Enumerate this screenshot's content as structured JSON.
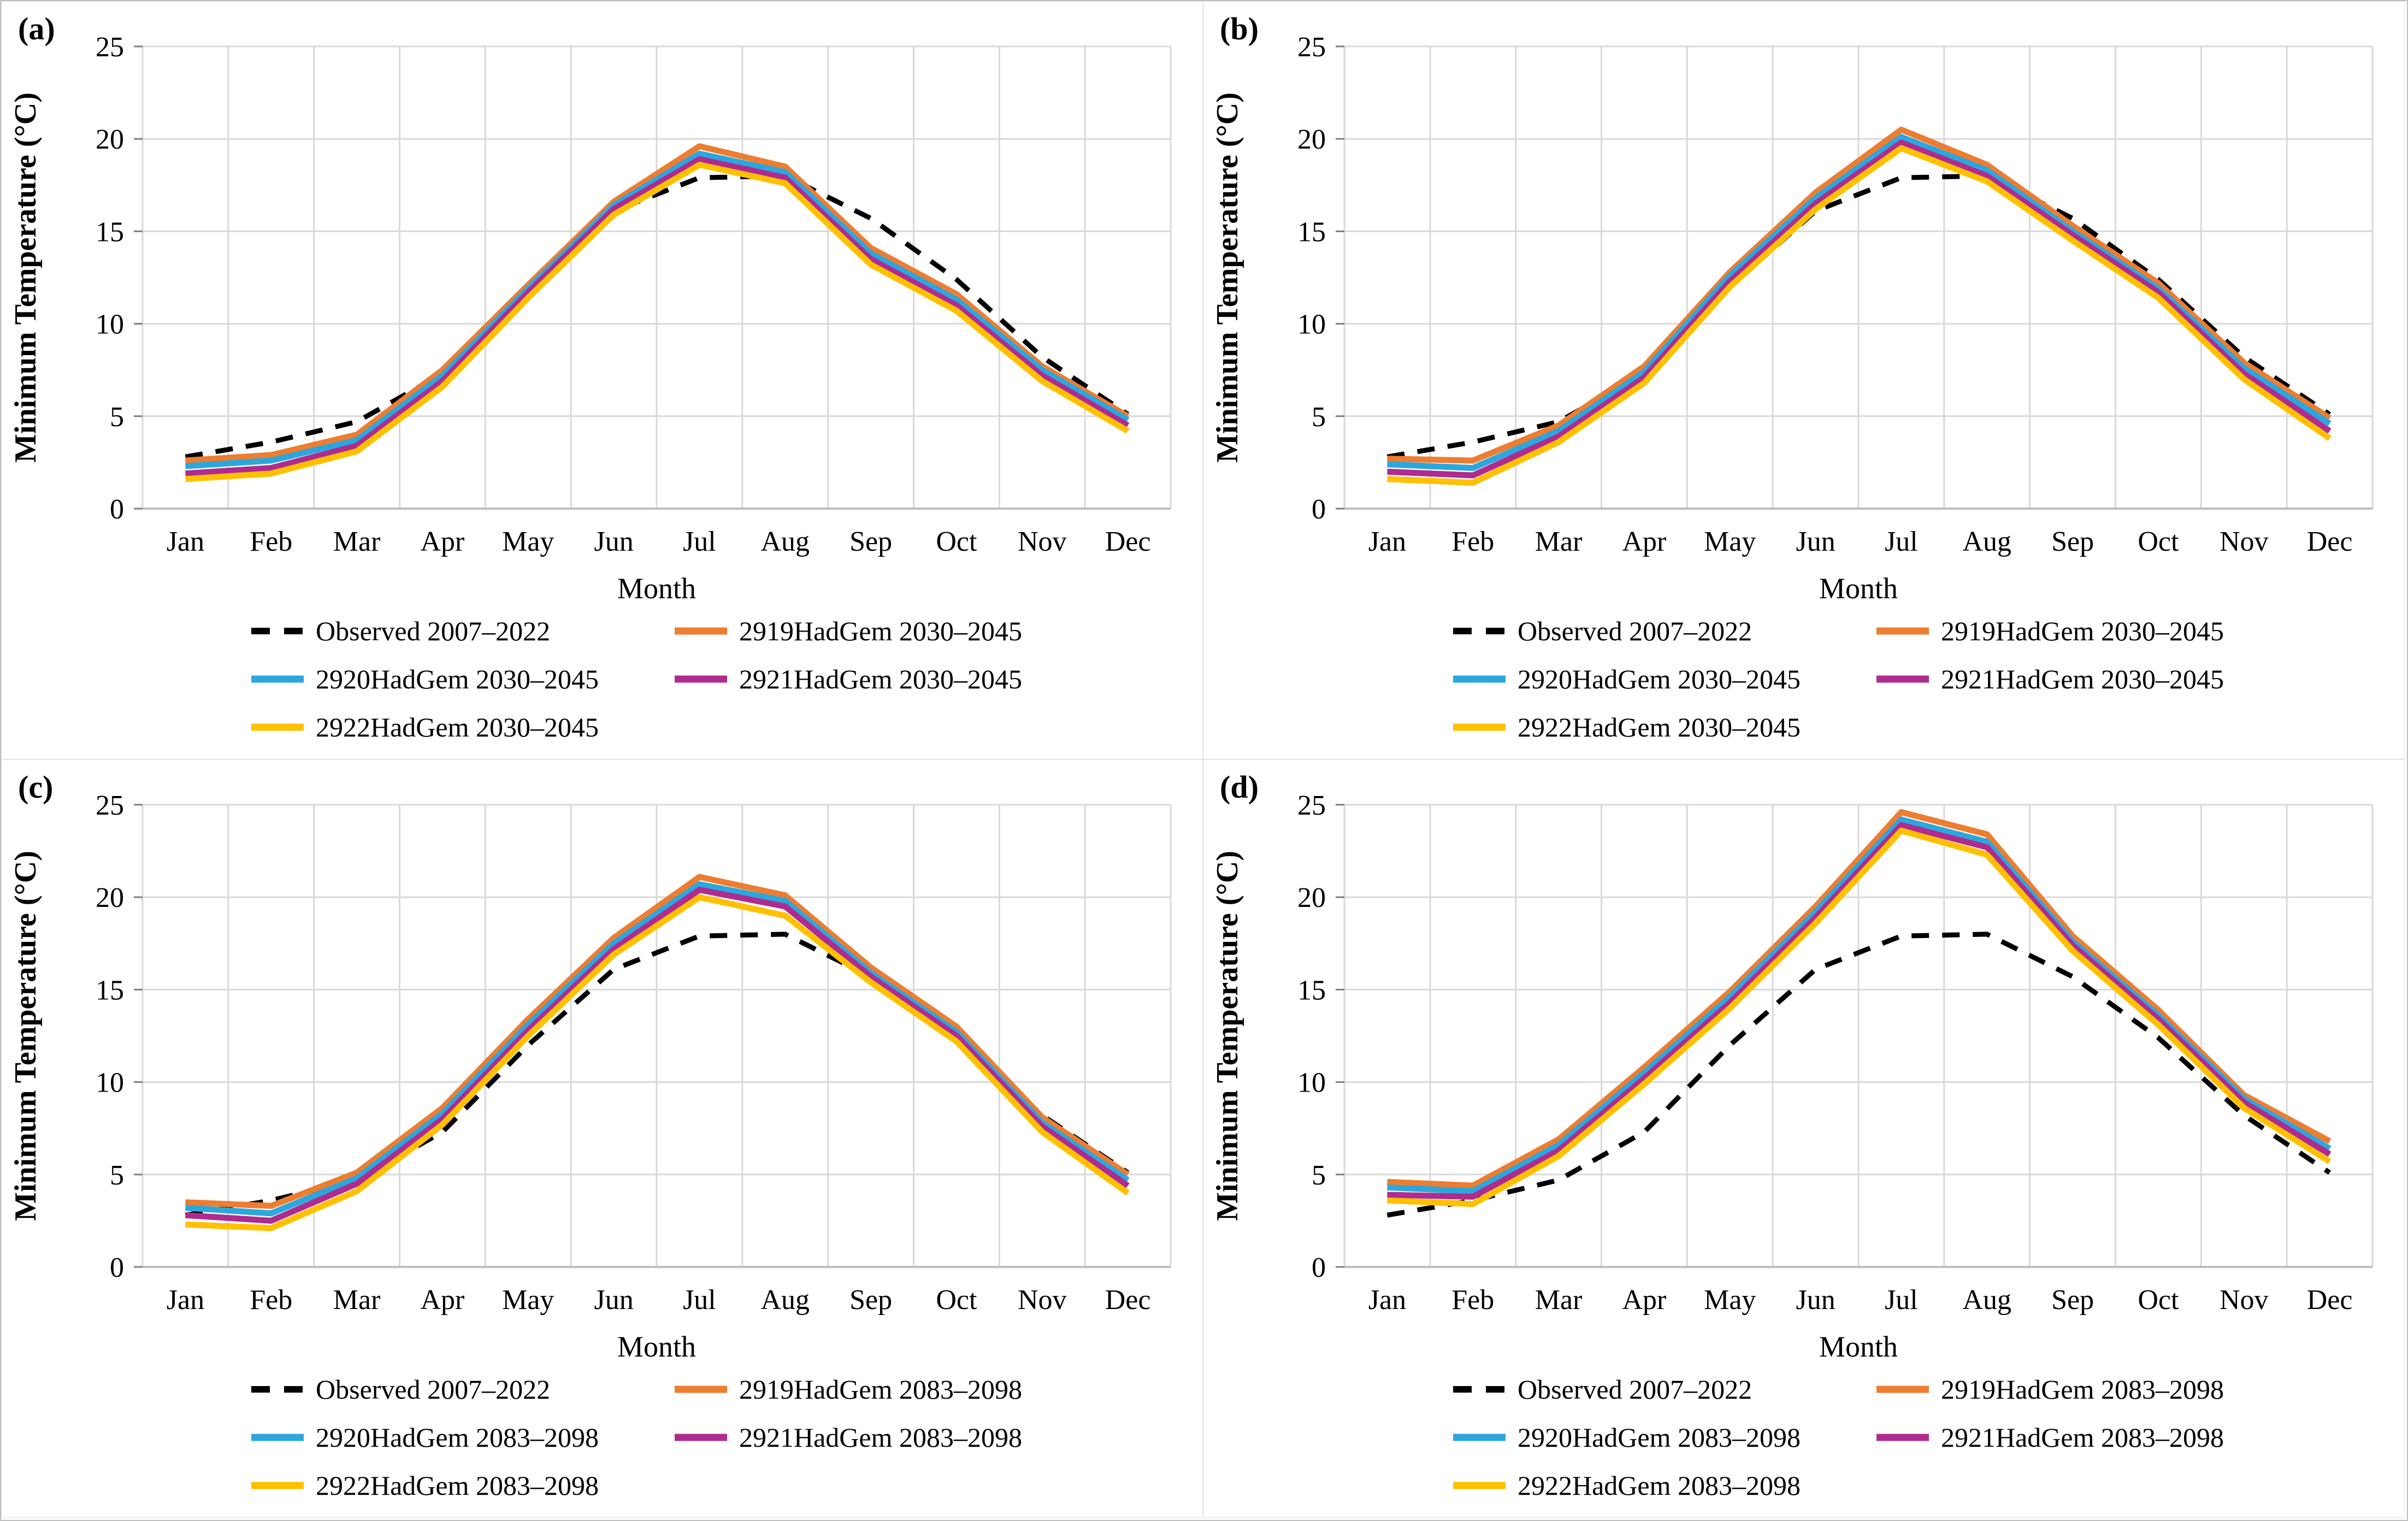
{
  "figure": {
    "background": "#ffffff",
    "border_color": "#bfbfbf",
    "grid_color": "#d9d9d9",
    "axis_line_color": "#bfbfbf",
    "tick_color": "#7f7f7f",
    "text_color": "#000000"
  },
  "colors": {
    "observed": "#000000",
    "s2919": "#ED7D31",
    "s2920": "#2BA7DE",
    "s2921": "#AF2B8F",
    "s2922": "#FFC000"
  },
  "months": [
    "Jan",
    "Feb",
    "Mar",
    "Apr",
    "May",
    "Jun",
    "Jul",
    "Aug",
    "Sep",
    "Oct",
    "Nov",
    "Dec"
  ],
  "chart_data": [
    {
      "id": "a",
      "panel_label": "(a)",
      "type": "line",
      "title": "",
      "xlabel": "Month",
      "ylabel": "Minimum Temperature (°C)",
      "ylim": [
        0,
        25
      ],
      "y_ticks": [
        0,
        5,
        10,
        15,
        20,
        25
      ],
      "grid": true,
      "legend_position": "bottom",
      "series": [
        {
          "name": "Observed 2007–2022",
          "color_key": "observed",
          "dash": true,
          "values": [
            2.8,
            3.6,
            4.7,
            7.3,
            12.0,
            16.1,
            17.9,
            18.0,
            15.7,
            12.4,
            8.2,
            5.1
          ]
        },
        {
          "name": "2919HadGem 2030–2045",
          "color_key": "s2919",
          "dash": false,
          "values": [
            2.6,
            2.9,
            4.0,
            7.5,
            12.1,
            16.6,
            19.6,
            18.5,
            14.1,
            11.6,
            7.7,
            5.0
          ]
        },
        {
          "name": "2920HadGem 2030–2045",
          "color_key": "s2920",
          "dash": false,
          "values": [
            2.3,
            2.6,
            3.7,
            7.2,
            11.9,
            16.4,
            19.2,
            18.2,
            13.8,
            11.3,
            7.5,
            4.8
          ]
        },
        {
          "name": "2921HadGem 2030–2045",
          "color_key": "s2921",
          "dash": false,
          "values": [
            1.9,
            2.2,
            3.4,
            6.9,
            11.7,
            16.2,
            18.9,
            17.9,
            13.5,
            11.0,
            7.2,
            4.5
          ]
        },
        {
          "name": "2922HadGem 2030–2045",
          "color_key": "s2922",
          "dash": false,
          "values": [
            1.6,
            1.9,
            3.1,
            6.6,
            11.4,
            15.9,
            18.6,
            17.6,
            13.2,
            10.7,
            6.9,
            4.2
          ]
        }
      ]
    },
    {
      "id": "b",
      "panel_label": "(b)",
      "type": "line",
      "title": "",
      "xlabel": "Month",
      "ylabel": "Minimum Temperature (°C)",
      "ylim": [
        0,
        25
      ],
      "y_ticks": [
        0,
        5,
        10,
        15,
        20,
        25
      ],
      "grid": true,
      "legend_position": "bottom",
      "series": [
        {
          "name": "Observed 2007–2022",
          "color_key": "observed",
          "dash": true,
          "values": [
            2.8,
            3.6,
            4.7,
            7.3,
            12.0,
            16.1,
            17.9,
            18.0,
            15.7,
            12.4,
            8.2,
            5.1
          ]
        },
        {
          "name": "2919HadGem 2030–2045",
          "color_key": "s2919",
          "dash": false,
          "values": [
            2.7,
            2.6,
            4.5,
            7.7,
            12.8,
            17.1,
            20.5,
            18.6,
            15.3,
            12.2,
            7.9,
            4.9
          ]
        },
        {
          "name": "2920HadGem 2030–2045",
          "color_key": "s2920",
          "dash": false,
          "values": [
            2.4,
            2.2,
            4.2,
            7.4,
            12.6,
            16.8,
            20.1,
            18.3,
            15.0,
            11.9,
            7.6,
            4.6
          ]
        },
        {
          "name": "2921HadGem 2030–2045",
          "color_key": "s2921",
          "dash": false,
          "values": [
            2.0,
            1.8,
            3.9,
            7.1,
            12.3,
            16.5,
            19.8,
            18.0,
            14.8,
            11.7,
            7.3,
            4.2
          ]
        },
        {
          "name": "2922HadGem 2030–2045",
          "color_key": "s2922",
          "dash": false,
          "values": [
            1.6,
            1.4,
            3.6,
            6.8,
            12.0,
            16.2,
            19.5,
            17.7,
            14.5,
            11.4,
            7.0,
            3.8
          ]
        }
      ]
    },
    {
      "id": "c",
      "panel_label": "(c)",
      "type": "line",
      "title": "",
      "xlabel": "Month",
      "ylabel": "Minimum Temperature (°C)",
      "ylim": [
        0,
        25
      ],
      "y_ticks": [
        0,
        5,
        10,
        15,
        20,
        25
      ],
      "grid": true,
      "legend_position": "bottom",
      "series": [
        {
          "name": "Observed 2007–2022",
          "color_key": "observed",
          "dash": true,
          "values": [
            2.8,
            3.6,
            4.7,
            7.3,
            12.0,
            16.1,
            17.9,
            18.0,
            15.7,
            12.4,
            8.2,
            5.1
          ]
        },
        {
          "name": "2919HadGem 2083–2098",
          "color_key": "s2919",
          "dash": false,
          "values": [
            3.5,
            3.3,
            5.1,
            8.6,
            13.4,
            17.8,
            21.1,
            20.1,
            16.2,
            13.0,
            8.1,
            5.0
          ]
        },
        {
          "name": "2920HadGem 2083–2098",
          "color_key": "s2920",
          "dash": false,
          "values": [
            3.2,
            2.9,
            4.8,
            8.3,
            13.1,
            17.5,
            20.7,
            19.8,
            15.9,
            12.7,
            7.8,
            4.7
          ]
        },
        {
          "name": "2921HadGem 2083–2098",
          "color_key": "s2921",
          "dash": false,
          "values": [
            2.8,
            2.5,
            4.5,
            8.0,
            12.8,
            17.2,
            20.4,
            19.5,
            15.7,
            12.5,
            7.6,
            4.4
          ]
        },
        {
          "name": "2922HadGem 2083–2098",
          "color_key": "s2922",
          "dash": false,
          "values": [
            2.3,
            2.1,
            4.1,
            7.7,
            12.5,
            16.9,
            20.0,
            19.0,
            15.4,
            12.2,
            7.3,
            4.0
          ]
        }
      ]
    },
    {
      "id": "d",
      "panel_label": "(d)",
      "type": "line",
      "title": "",
      "xlabel": "Month",
      "ylabel": "Minimum Temperature (°C)",
      "ylim": [
        0,
        25
      ],
      "y_ticks": [
        0,
        5,
        10,
        15,
        20,
        25
      ],
      "grid": true,
      "legend_position": "bottom",
      "series": [
        {
          "name": "Observed 2007–2022",
          "color_key": "observed",
          "dash": true,
          "values": [
            2.8,
            3.6,
            4.7,
            7.3,
            12.0,
            16.1,
            17.9,
            18.0,
            15.7,
            12.4,
            8.2,
            5.1
          ]
        },
        {
          "name": "2919HadGem 2083–2098",
          "color_key": "s2919",
          "dash": false,
          "values": [
            4.6,
            4.4,
            6.9,
            10.8,
            14.9,
            19.5,
            24.6,
            23.4,
            17.9,
            13.9,
            9.3,
            6.8
          ]
        },
        {
          "name": "2920HadGem 2083–2098",
          "color_key": "s2920",
          "dash": false,
          "values": [
            4.3,
            4.1,
            6.6,
            10.5,
            14.6,
            19.2,
            24.2,
            23.0,
            17.6,
            13.6,
            9.1,
            6.4
          ]
        },
        {
          "name": "2921HadGem 2083–2098",
          "color_key": "s2921",
          "dash": false,
          "values": [
            3.9,
            3.8,
            6.3,
            10.2,
            14.3,
            18.9,
            23.9,
            22.7,
            17.4,
            13.4,
            8.9,
            6.1
          ]
        },
        {
          "name": "2922HadGem 2083–2098",
          "color_key": "s2922",
          "dash": false,
          "values": [
            3.6,
            3.4,
            6.0,
            9.9,
            14.0,
            18.6,
            23.6,
            22.3,
            17.1,
            13.1,
            8.6,
            5.7
          ]
        }
      ]
    }
  ]
}
